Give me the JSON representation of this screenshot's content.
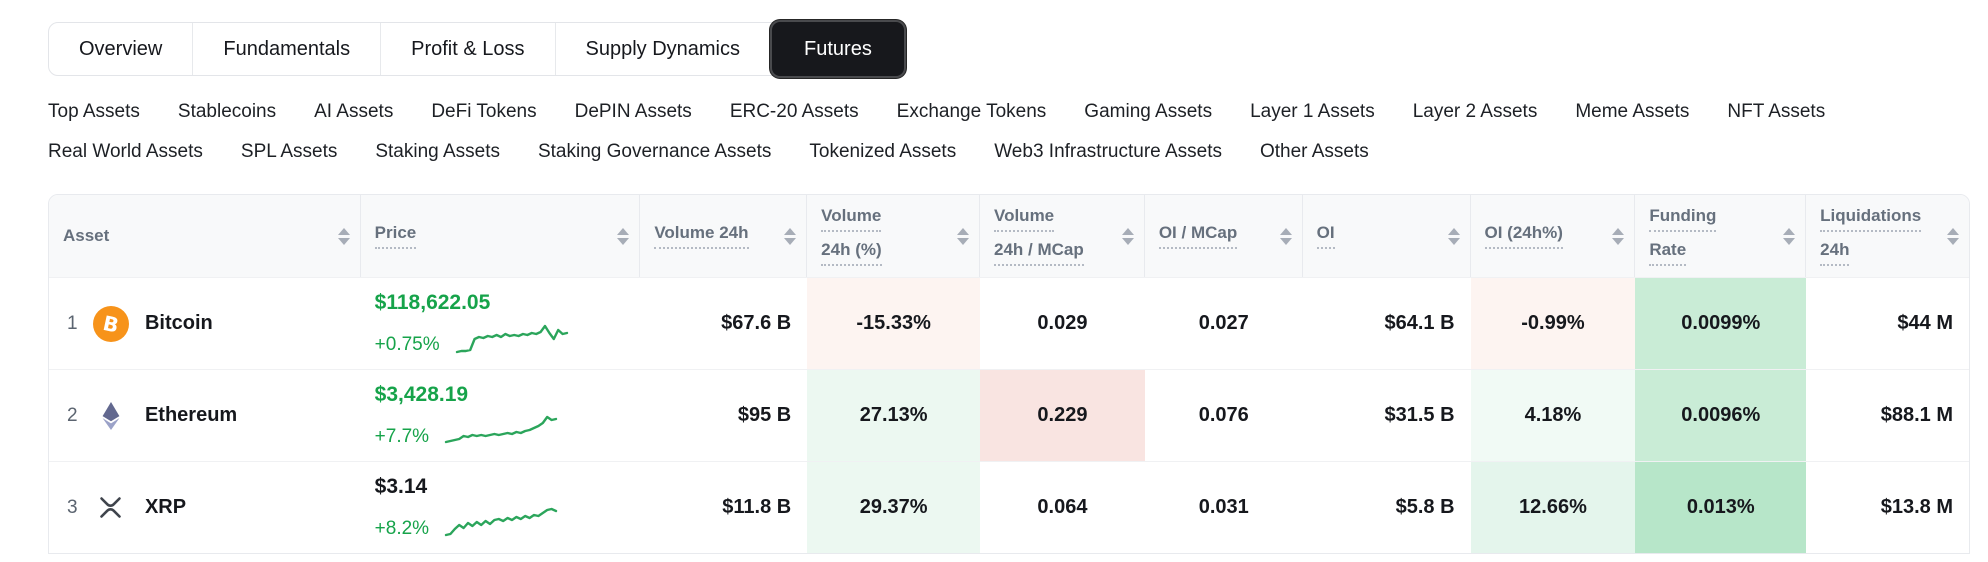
{
  "tabs": {
    "items": [
      {
        "label": "Overview",
        "selected": false
      },
      {
        "label": "Fundamentals",
        "selected": false
      },
      {
        "label": "Profit & Loss",
        "selected": false
      },
      {
        "label": "Supply Dynamics",
        "selected": false
      },
      {
        "label": "Futures",
        "selected": true
      }
    ]
  },
  "filters": {
    "row1": [
      "Top Assets",
      "Stablecoins",
      "AI Assets",
      "DeFi Tokens",
      "DePIN Assets",
      "ERC-20 Assets",
      "Exchange Tokens",
      "Gaming Assets",
      "Layer 1 Assets",
      "Layer 2 Assets",
      "Meme Assets",
      "NFT Assets"
    ],
    "row2": [
      "Real World Assets",
      "SPL Assets",
      "Staking Assets",
      "Staking Governance Assets",
      "Tokenized Assets",
      "Web3 Infrastructure Assets",
      "Other Assets"
    ]
  },
  "table": {
    "columns": [
      {
        "id": "asset",
        "lines": [
          "Asset"
        ]
      },
      {
        "id": "price",
        "lines": [
          "Price"
        ]
      },
      {
        "id": "volume_24h",
        "lines": [
          "Volume 24h"
        ]
      },
      {
        "id": "volume_24h_pct",
        "lines": [
          "Volume",
          "24h (%)"
        ]
      },
      {
        "id": "volume_24h_mcap",
        "lines": [
          "Volume",
          "24h / MCap"
        ]
      },
      {
        "id": "oi_mcap",
        "lines": [
          "OI / MCap"
        ]
      },
      {
        "id": "oi",
        "lines": [
          "OI"
        ]
      },
      {
        "id": "oi_24h_pct",
        "lines": [
          "OI (24h%)"
        ]
      },
      {
        "id": "funding_rate",
        "lines": [
          "Funding",
          "Rate"
        ]
      },
      {
        "id": "liquidations_24h",
        "lines": [
          "Liquidations",
          "24h"
        ]
      }
    ],
    "rows": [
      {
        "rank": "1",
        "name": "Bitcoin",
        "icon": "bitcoin-icon",
        "price": "$118,622.05",
        "change_24h": "+0.75%",
        "price_up": true,
        "sparkline": [
          30,
          29,
          29,
          28,
          17,
          15,
          16,
          14,
          15,
          13,
          15,
          12,
          14,
          13,
          14,
          12,
          13,
          11,
          12,
          10,
          4,
          11,
          17,
          8,
          12,
          11
        ],
        "values": {
          "volume_24h": {
            "text": "$67.6 B"
          },
          "volume_24h_pct": {
            "text": "-15.33%",
            "bg": "red_50"
          },
          "volume_24h_mcap": {
            "text": "0.029"
          },
          "oi_mcap": {
            "text": "0.027"
          },
          "oi": {
            "text": "$64.1 B"
          },
          "oi_24h_pct": {
            "text": "-0.99%",
            "bg": "red_50"
          },
          "funding_rate": {
            "text": "0.0099%",
            "bg": "green_200"
          },
          "liquidations_24h": {
            "text": "$44 M"
          }
        }
      },
      {
        "rank": "2",
        "name": "Ethereum",
        "icon": "ethereum-icon",
        "price": "$3,428.19",
        "change_24h": "+7.7%",
        "price_up": true,
        "sparkline": [
          28,
          27,
          26,
          25,
          22,
          23,
          21,
          22,
          21,
          22,
          21,
          20,
          21,
          20,
          19,
          20,
          18,
          19,
          17,
          16,
          14,
          12,
          9,
          3,
          6,
          5
        ],
        "values": {
          "volume_24h": {
            "text": "$95 B"
          },
          "volume_24h_pct": {
            "text": "27.13%",
            "bg": "green_75"
          },
          "volume_24h_mcap": {
            "text": "0.229",
            "bg": "red_100"
          },
          "oi_mcap": {
            "text": "0.076"
          },
          "oi": {
            "text": "$31.5 B"
          },
          "oi_24h_pct": {
            "text": "4.18%",
            "bg": "green_50"
          },
          "funding_rate": {
            "text": "0.0096%",
            "bg": "green_200"
          },
          "liquidations_24h": {
            "text": "$88.1 M"
          }
        }
      },
      {
        "rank": "3",
        "name": "XRP",
        "icon": "xrp-icon",
        "price": "$3.14",
        "change_24h": "+8.2%",
        "price_up": false,
        "sparkline": [
          29,
          28,
          23,
          19,
          22,
          17,
          20,
          16,
          19,
          15,
          18,
          14,
          13,
          15,
          12,
          14,
          11,
          13,
          10,
          12,
          9,
          10,
          7,
          4,
          3,
          5
        ],
        "values": {
          "volume_24h": {
            "text": "$11.8 B"
          },
          "volume_24h_pct": {
            "text": "29.37%",
            "bg": "green_75"
          },
          "volume_24h_mcap": {
            "text": "0.064"
          },
          "oi_mcap": {
            "text": "0.031"
          },
          "oi": {
            "text": "$5.8 B"
          },
          "oi_24h_pct": {
            "text": "12.66%",
            "bg": "green_100"
          },
          "funding_rate": {
            "text": "0.013%",
            "bg": "green_300"
          },
          "liquidations_24h": {
            "text": "$13.8 M"
          }
        }
      }
    ]
  },
  "colors": {
    "positive_text": "#16a34a",
    "sparkline_stroke": "#2ba55b",
    "selected_tab_bg": "#17181c",
    "bitcoin_orange": "#f7931a",
    "ethereum_blue": "#62688f",
    "cell_bg": {
      "red_50": "#fdf4f1",
      "red_100": "#f9e4e1",
      "green_50": "#f1faf5",
      "green_75": "#ecf8f1",
      "green_100": "#e4f5ec",
      "green_200": "#c9ecd6",
      "green_300": "#b7e6c9"
    }
  }
}
